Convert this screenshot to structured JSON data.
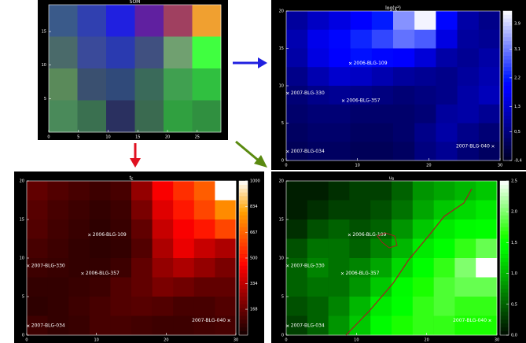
{
  "chart_data": [
    {
      "type": "image",
      "title": "SOM",
      "xlim": [
        0,
        29
      ],
      "ylim": [
        0,
        19
      ],
      "xticks": [
        0,
        5,
        10,
        15,
        20,
        25
      ],
      "yticks": [
        5,
        10,
        15
      ],
      "colors": [
        [
          "#3a5a8a",
          "#3040b0",
          "#2020e0",
          "#6020a0",
          "#a04060",
          "#f0a030"
        ],
        [
          "#4a6a6a",
          "#3a4a9a",
          "#2a3ab0",
          "#405080",
          "#70a070",
          "#40ff40"
        ],
        [
          "#5a8a5a",
          "#3a5070",
          "#304a7a",
          "#3a6a5a",
          "#40a050",
          "#30c040"
        ],
        [
          "#4a8a5a",
          "#3a7050",
          "#2a3060",
          "#3a6a50",
          "#30a040",
          "#309040"
        ]
      ]
    },
    {
      "type": "heatmap",
      "title": "log(χ²)",
      "colormap": "blue",
      "xlim": [
        0,
        30
      ],
      "ylim": [
        0,
        20
      ],
      "xticks": [
        0,
        10,
        20,
        30
      ],
      "yticks": [
        0,
        5,
        10,
        15,
        20
      ],
      "clim": [
        -0.4,
        4.3
      ],
      "cticks": [
        {
          "value": -0.4,
          "label": "-0,4"
        },
        {
          "value": 0.5,
          "label": "0,5"
        },
        {
          "value": 1.3,
          "label": "1,3"
        },
        {
          "value": 2.2,
          "label": "2,2"
        },
        {
          "value": 3.1,
          "label": "3,1"
        },
        {
          "value": 3.9,
          "label": "3,9"
        }
      ],
      "z": [
        [
          0.8,
          1.2,
          1.5,
          1.8,
          2.2,
          3.3,
          4.2,
          2.0,
          0.9,
          0.6
        ],
        [
          1.0,
          1.6,
          2.0,
          2.3,
          2.6,
          3.0,
          2.8,
          1.5,
          0.8,
          0.7
        ],
        [
          0.9,
          1.5,
          1.9,
          2.1,
          2.0,
          1.8,
          1.4,
          0.9,
          0.7,
          0.9
        ],
        [
          0.6,
          1.0,
          1.3,
          1.2,
          1.0,
          0.8,
          0.7,
          0.6,
          0.8,
          1.0
        ],
        [
          0.4,
          0.6,
          0.7,
          0.6,
          0.5,
          0.4,
          0.5,
          0.6,
          0.9,
          1.1
        ],
        [
          0.3,
          0.4,
          0.4,
          0.3,
          0.3,
          0.3,
          0.4,
          0.8,
          0.9,
          0.7
        ],
        [
          0.2,
          0.3,
          0.3,
          0.2,
          0.2,
          0.3,
          0.6,
          0.9,
          0.6,
          0.4
        ],
        [
          0.1,
          0.2,
          0.2,
          0.1,
          0.1,
          0.2,
          0.5,
          0.7,
          0.4,
          0.2
        ]
      ],
      "annotations": [
        {
          "text": "2006-BLG-109",
          "x": 9,
          "y": 13
        },
        {
          "text": "2007-BLG-330",
          "x": 0.2,
          "y": 9
        },
        {
          "text": "2006-BLG-357",
          "x": 8,
          "y": 8
        },
        {
          "text": "2007-BLG-034",
          "x": 0.2,
          "y": 1.2
        },
        {
          "text": "2007-BLG-040",
          "x": 29,
          "y": 1.9
        }
      ]
    },
    {
      "type": "heatmap",
      "title": "t",
      "title_subscript": "E",
      "colormap": "red",
      "xlim": [
        0,
        30
      ],
      "ylim": [
        0,
        20
      ],
      "xticks": [
        0,
        10,
        20,
        30
      ],
      "yticks": [
        0,
        5,
        10,
        15,
        20
      ],
      "clim": [
        0,
        1000
      ],
      "cticks": [
        168,
        334,
        500,
        667,
        834,
        1000
      ],
      "z": [
        [
          150,
          120,
          100,
          80,
          100,
          250,
          450,
          550,
          650,
          1000
        ],
        [
          130,
          100,
          80,
          60,
          80,
          200,
          400,
          500,
          600,
          750
        ],
        [
          120,
          90,
          70,
          50,
          70,
          150,
          350,
          450,
          500,
          600
        ],
        [
          100,
          80,
          60,
          50,
          60,
          120,
          300,
          420,
          350,
          300
        ],
        [
          80,
          70,
          60,
          60,
          80,
          150,
          250,
          300,
          250,
          200
        ],
        [
          60,
          60,
          70,
          80,
          120,
          150,
          200,
          180,
          150,
          150
        ],
        [
          50,
          60,
          80,
          100,
          120,
          130,
          120,
          100,
          100,
          120
        ],
        [
          80,
          60,
          70,
          100,
          100,
          90,
          80,
          80,
          90,
          100
        ]
      ],
      "annotations": [
        {
          "text": "2006-BLG-109",
          "x": 9,
          "y": 13
        },
        {
          "text": "2007-BLG-330",
          "x": 0.2,
          "y": 9
        },
        {
          "text": "2006-BLG-357",
          "x": 8,
          "y": 8
        },
        {
          "text": "2007-BLG-034",
          "x": 0.2,
          "y": 1.2
        },
        {
          "text": "2007-BLG-040",
          "x": 29,
          "y": 1.9
        }
      ]
    },
    {
      "type": "heatmap",
      "title": "u",
      "title_subscript": "0",
      "colormap": "green",
      "xlim": [
        0,
        30
      ],
      "ylim": [
        0,
        20
      ],
      "xticks": [
        0,
        10,
        20,
        30
      ],
      "yticks": [
        0,
        5,
        10,
        15,
        20
      ],
      "clim": [
        0,
        2.5
      ],
      "cticks": [
        {
          "value": 0,
          "label": "0,0"
        },
        {
          "value": 0.5,
          "label": "0,5"
        },
        {
          "value": 1,
          "label": "1,0"
        },
        {
          "value": 1.5,
          "label": "1,5"
        },
        {
          "value": 2,
          "label": "2,0"
        },
        {
          "value": 2.5,
          "label": "2,5"
        }
      ],
      "z": [
        [
          0.1,
          0.1,
          0.2,
          0.3,
          0.3,
          0.5,
          0.8,
          0.9,
          1.0,
          1.1
        ],
        [
          0.1,
          0.2,
          0.3,
          0.3,
          0.4,
          0.6,
          0.9,
          1.1,
          1.2,
          1.3
        ],
        [
          0.2,
          0.4,
          0.5,
          0.4,
          0.5,
          0.8,
          1.1,
          1.3,
          1.4,
          1.5
        ],
        [
          0.4,
          0.6,
          0.6,
          0.5,
          0.7,
          1.0,
          1.3,
          1.5,
          1.7,
          1.9
        ],
        [
          0.5,
          0.7,
          0.6,
          0.7,
          0.9,
          1.2,
          1.5,
          1.7,
          2.0,
          2.5
        ],
        [
          0.5,
          0.6,
          0.6,
          0.8,
          1.1,
          1.4,
          1.6,
          1.8,
          1.9,
          1.9
        ],
        [
          0.4,
          0.5,
          0.7,
          1.0,
          1.3,
          1.5,
          1.7,
          1.8,
          1.7,
          1.7
        ],
        [
          0.3,
          0.5,
          0.8,
          1.1,
          1.4,
          1.6,
          1.7,
          1.7,
          1.6,
          1.6
        ]
      ],
      "annotations": [
        {
          "text": "2006-BLG-109",
          "x": 9,
          "y": 13
        },
        {
          "text": "2007-BLG-330",
          "x": 0.2,
          "y": 9
        },
        {
          "text": "2006-BLG-357",
          "x": 8,
          "y": 8
        },
        {
          "text": "2007-BLG-034",
          "x": 0.2,
          "y": 1.2
        },
        {
          "text": "2007-BLG-040",
          "x": 29,
          "y": 1.9
        }
      ]
    }
  ]
}
